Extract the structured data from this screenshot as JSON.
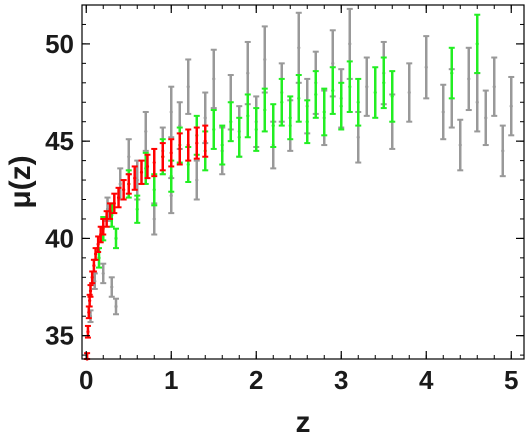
{
  "chart_data": {
    "type": "scatter",
    "title": "",
    "xlabel": "z",
    "ylabel": "μ(z)",
    "xlim": [
      -0.05,
      5.15
    ],
    "ylim": [
      33.8,
      52.0
    ],
    "xticks": [
      "0",
      "1",
      "2",
      "3",
      "4",
      "5"
    ],
    "yticks": [
      "35",
      "40",
      "45",
      "50"
    ],
    "grid": false,
    "legend": "none",
    "series": [
      {
        "color": "#999999",
        "points": [
          [
            0.05,
            36.0,
            0.3
          ],
          [
            0.1,
            37.8,
            0.4
          ],
          [
            0.2,
            38.2,
            0.5
          ],
          [
            0.3,
            37.5,
            0.5
          ],
          [
            0.35,
            36.5,
            0.4
          ],
          [
            0.25,
            41.5,
            0.6
          ],
          [
            0.4,
            42.8,
            0.8
          ],
          [
            0.5,
            44.2,
            0.9
          ],
          [
            0.6,
            43.0,
            1.0
          ],
          [
            0.7,
            45.5,
            1.0
          ],
          [
            0.8,
            41.0,
            0.8
          ],
          [
            0.9,
            44.5,
            1.2
          ],
          [
            1.0,
            46.5,
            1.3
          ],
          [
            1.0,
            42.2,
            0.9
          ],
          [
            1.1,
            45.8,
            1.2
          ],
          [
            1.2,
            47.8,
            1.4
          ],
          [
            1.3,
            43.0,
            1.0
          ],
          [
            1.4,
            46.2,
            1.3
          ],
          [
            1.5,
            48.2,
            1.5
          ],
          [
            1.6,
            44.5,
            1.2
          ],
          [
            1.7,
            47.0,
            1.4
          ],
          [
            1.8,
            45.5,
            1.3
          ],
          [
            1.9,
            48.5,
            1.6
          ],
          [
            2.0,
            46.0,
            1.3
          ],
          [
            2.1,
            49.2,
            1.7
          ],
          [
            2.2,
            44.8,
            1.2
          ],
          [
            2.3,
            47.5,
            1.5
          ],
          [
            2.4,
            45.8,
            1.3
          ],
          [
            2.5,
            49.8,
            1.8
          ],
          [
            2.6,
            46.8,
            1.4
          ],
          [
            2.7,
            48.0,
            1.6
          ],
          [
            2.8,
            46.2,
            1.4
          ],
          [
            2.9,
            49.0,
            1.7
          ],
          [
            3.0,
            47.2,
            1.5
          ],
          [
            3.1,
            50.0,
            1.8
          ],
          [
            3.2,
            45.2,
            1.3
          ],
          [
            3.3,
            47.8,
            1.5
          ],
          [
            3.5,
            48.5,
            1.6
          ],
          [
            3.6,
            46.0,
            1.4
          ],
          [
            3.8,
            47.5,
            1.5
          ],
          [
            4.0,
            48.8,
            1.6
          ],
          [
            4.2,
            46.5,
            1.4
          ],
          [
            4.3,
            47.2,
            1.5
          ],
          [
            4.4,
            44.8,
            1.3
          ],
          [
            4.5,
            48.2,
            1.6
          ],
          [
            4.6,
            47.0,
            1.5
          ],
          [
            4.7,
            46.2,
            1.4
          ],
          [
            4.8,
            47.8,
            1.5
          ],
          [
            4.9,
            44.5,
            1.3
          ],
          [
            5.0,
            46.8,
            1.5
          ]
        ]
      },
      {
        "color": "#22ee22",
        "points": [
          [
            0.15,
            39.0,
            0.5
          ],
          [
            0.2,
            40.5,
            0.6
          ],
          [
            0.3,
            41.2,
            0.6
          ],
          [
            0.35,
            40.0,
            0.5
          ],
          [
            0.5,
            42.8,
            0.7
          ],
          [
            0.6,
            41.5,
            0.7
          ],
          [
            0.7,
            43.6,
            0.8
          ],
          [
            0.8,
            42.5,
            0.8
          ],
          [
            0.9,
            44.2,
            0.9
          ],
          [
            1.0,
            43.2,
            0.8
          ],
          [
            1.1,
            44.8,
            0.9
          ],
          [
            1.2,
            43.8,
            0.9
          ],
          [
            1.3,
            45.3,
            1.0
          ],
          [
            1.4,
            44.5,
            1.0
          ],
          [
            1.5,
            45.6,
            1.0
          ],
          [
            1.6,
            44.8,
            1.0
          ],
          [
            1.7,
            46.0,
            1.0
          ],
          [
            1.8,
            45.2,
            1.0
          ],
          [
            1.9,
            46.3,
            1.1
          ],
          [
            2.0,
            45.6,
            1.1
          ],
          [
            2.1,
            46.6,
            1.1
          ],
          [
            2.2,
            45.8,
            1.1
          ],
          [
            2.3,
            47.0,
            1.2
          ],
          [
            2.4,
            46.2,
            1.1
          ],
          [
            2.5,
            47.2,
            1.2
          ],
          [
            2.6,
            46.0,
            1.1
          ],
          [
            2.7,
            47.4,
            1.2
          ],
          [
            2.8,
            46.5,
            1.2
          ],
          [
            2.9,
            47.6,
            1.2
          ],
          [
            3.0,
            46.8,
            1.2
          ],
          [
            3.1,
            47.8,
            1.3
          ],
          [
            3.2,
            47.0,
            1.2
          ],
          [
            3.4,
            47.5,
            1.3
          ],
          [
            3.5,
            48.0,
            1.3
          ],
          [
            3.6,
            47.3,
            1.3
          ],
          [
            4.3,
            48.5,
            1.3
          ],
          [
            4.6,
            50.0,
            1.5
          ]
        ]
      },
      {
        "color": "#ff0000",
        "points": [
          [
            0.01,
            33.8,
            0.3
          ],
          [
            0.02,
            35.2,
            0.3
          ],
          [
            0.03,
            36.2,
            0.3
          ],
          [
            0.04,
            36.8,
            0.3
          ],
          [
            0.05,
            37.3,
            0.3
          ],
          [
            0.07,
            38.0,
            0.3
          ],
          [
            0.09,
            38.6,
            0.3
          ],
          [
            0.11,
            39.2,
            0.3
          ],
          [
            0.14,
            39.7,
            0.4
          ],
          [
            0.17,
            40.2,
            0.4
          ],
          [
            0.2,
            40.6,
            0.4
          ],
          [
            0.24,
            41.0,
            0.4
          ],
          [
            0.28,
            41.4,
            0.4
          ],
          [
            0.33,
            41.8,
            0.5
          ],
          [
            0.38,
            42.1,
            0.5
          ],
          [
            0.44,
            42.5,
            0.5
          ],
          [
            0.5,
            42.8,
            0.5
          ],
          [
            0.57,
            43.1,
            0.6
          ],
          [
            0.65,
            43.4,
            0.6
          ],
          [
            0.72,
            43.7,
            0.6
          ],
          [
            0.8,
            43.9,
            0.7
          ],
          [
            0.9,
            44.2,
            0.7
          ],
          [
            1.0,
            44.4,
            0.7
          ],
          [
            1.1,
            44.6,
            0.8
          ],
          [
            1.2,
            44.8,
            0.8
          ],
          [
            1.3,
            44.9,
            0.8
          ],
          [
            1.4,
            45.0,
            0.8
          ]
        ]
      }
    ]
  }
}
